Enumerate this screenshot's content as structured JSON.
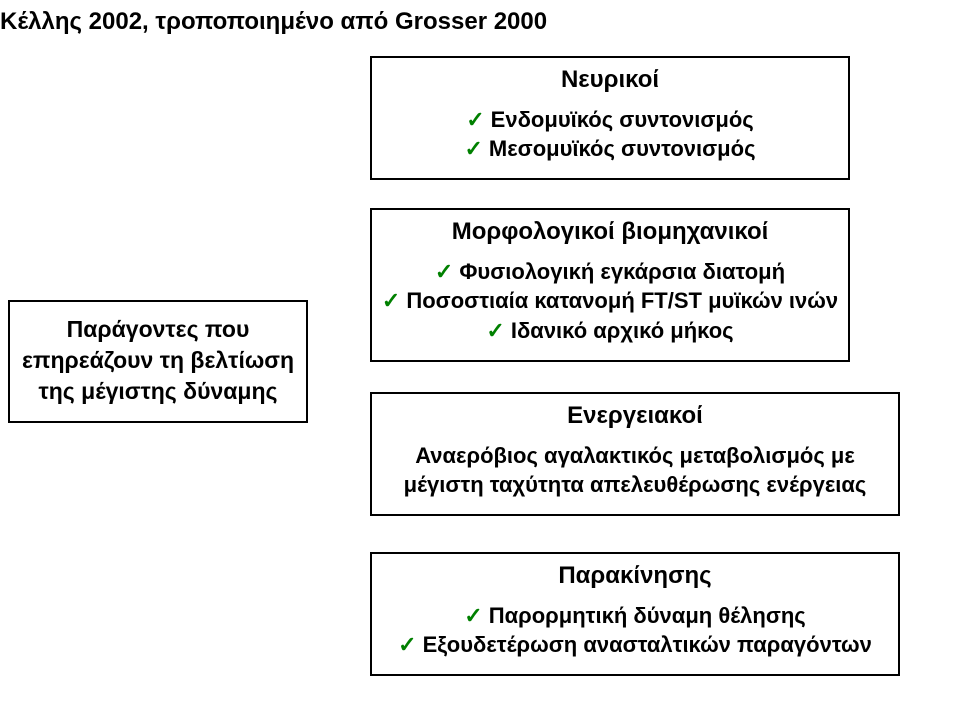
{
  "title": "Κέλλης 2002, τροποποιημένο από Grosser 2000",
  "factors": {
    "line1": "Παράγοντες που",
    "line2": "επηρεάζουν τη βελτίωση",
    "line3": "της μέγιστης δύναμης"
  },
  "neuro": {
    "heading": "Νευρικοί",
    "item1": "Ενδομυϊκός συντονισμός",
    "item2": "Μεσομυϊκός συντονισμός"
  },
  "morpho": {
    "heading": "Μορφολογικοί βιομηχανικοί",
    "item1": "Φυσιολογική εγκάρσια διατομή",
    "item2": "Ποσοστιαία κατανομή FT/ST μυϊκών ινών",
    "item3": "Ιδανικό αρχικό μήκος"
  },
  "energy": {
    "heading": "Ενεργειακοί",
    "line1": "Αναερόβιος αγαλακτικός μεταβολισμός με",
    "line2": "μέγιστη ταχύτητα απελευθέρωσης ενέργειας"
  },
  "motiv": {
    "heading": "Παρακίνησης",
    "item1": "Παρορμητική δύναμη θέλησης",
    "item2": "Εξουδετέρωση ανασταλτικών παραγόντων"
  },
  "colors": {
    "tick": "#008000",
    "border": "#000000",
    "text": "#000000",
    "background": "#ffffff"
  }
}
